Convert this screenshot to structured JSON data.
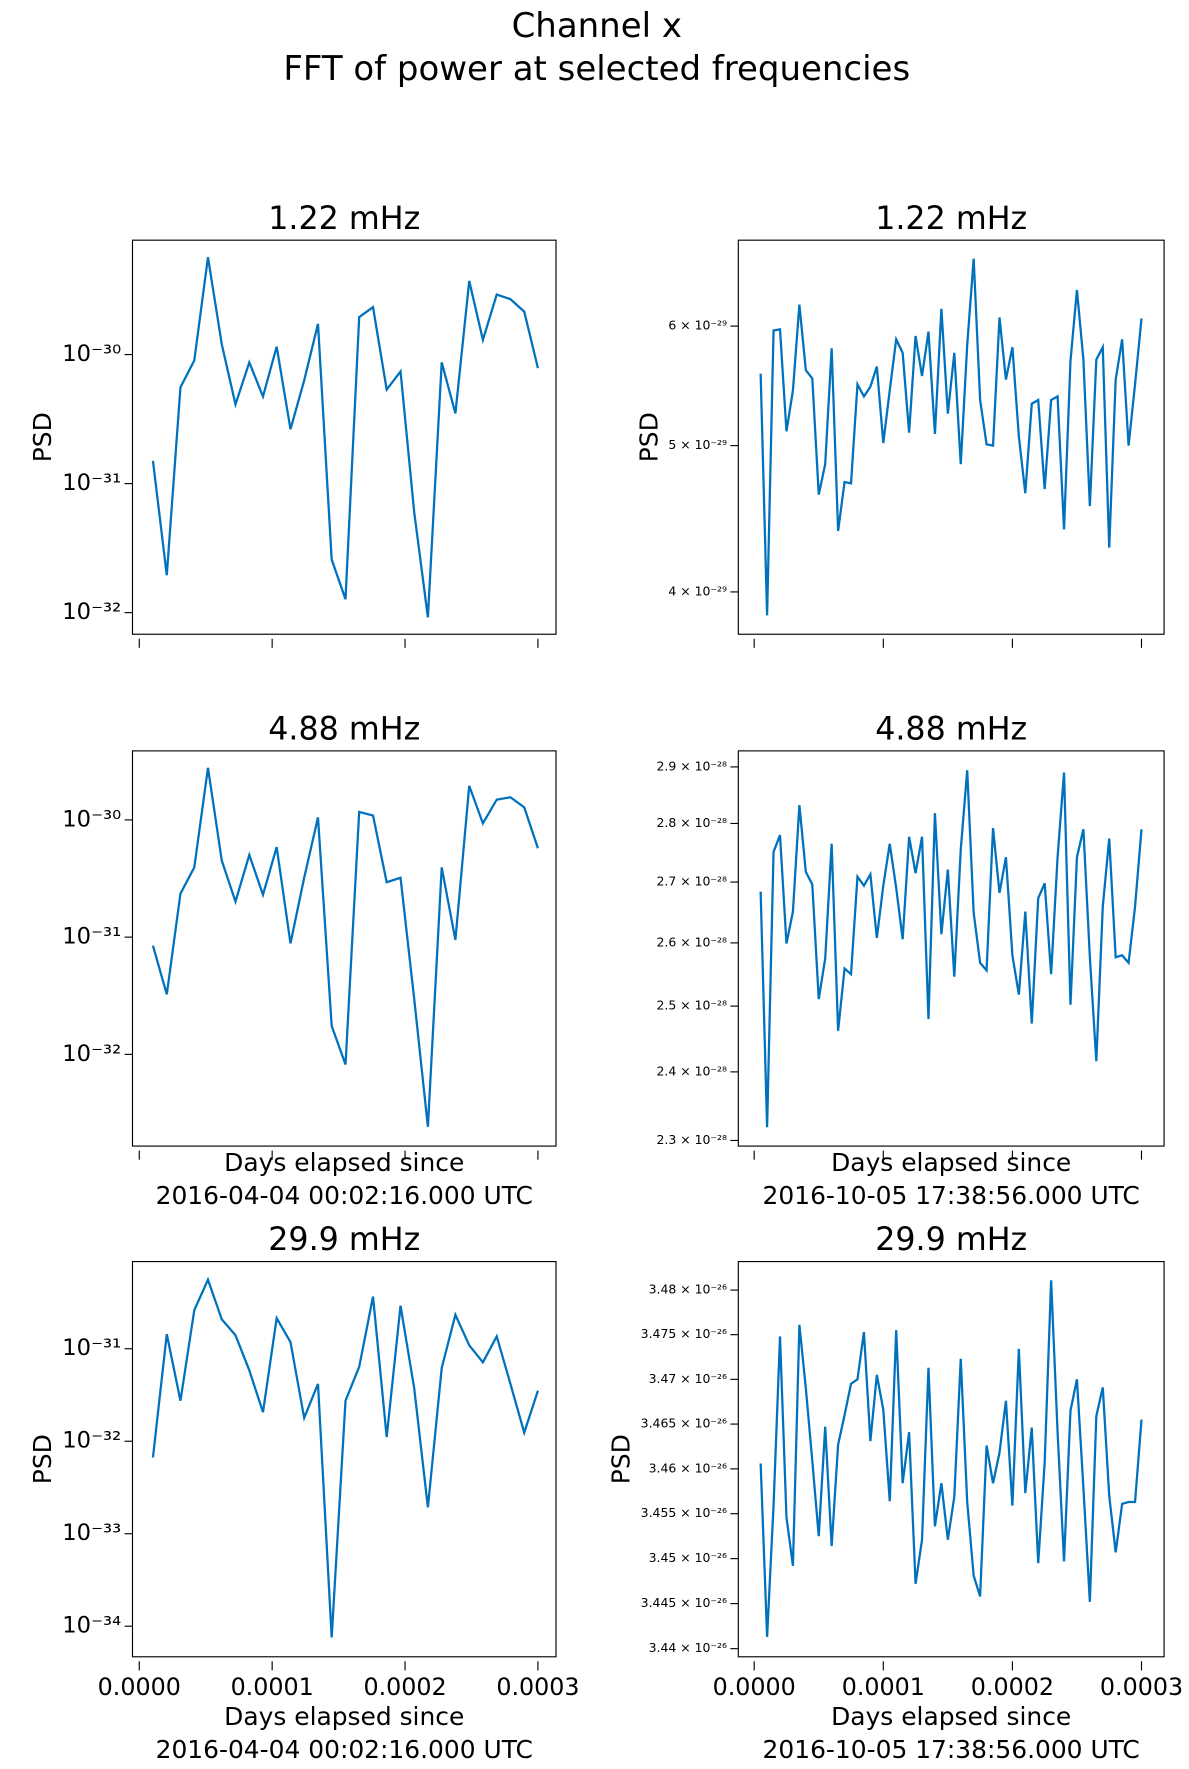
{
  "suptitle": [
    "Channel x",
    "FFT of power at selected frequencies"
  ],
  "chart_data": [
    {
      "type": "line",
      "title": "1.22 mHz",
      "ylabel": "PSD",
      "log_y": true,
      "color": "#0072bd",
      "xtick_labels": false,
      "xlim": [
        -5.1e-06,
        0.0003136
      ],
      "ylim": [
        6.8e-33,
        7.7e-30
      ],
      "xticks": [
        0,
        0.0001,
        0.0002,
        0.0003
      ],
      "yticks": [
        {
          "value": 1e-32,
          "label": "10⁻³²"
        },
        {
          "value": 1e-31,
          "label": "10⁻³¹"
        },
        {
          "value": 1e-30,
          "label": "10⁻³⁰"
        }
      ],
      "x": [
        1.03e-05,
        2.07e-05,
        3.1e-05,
        4.14e-05,
        5.17e-05,
        6.21e-05,
        7.24e-05,
        8.28e-05,
        9.31e-05,
        0.0001034,
        0.0001138,
        0.0001241,
        0.0001345,
        0.0001448,
        0.0001552,
        0.0001655,
        0.0001759,
        0.0001862,
        0.0001966,
        0.0002069,
        0.0002172,
        0.0002276,
        0.0002379,
        0.0002483,
        0.0002586,
        0.000269,
        0.0002793,
        0.0002897,
        0.0003
      ],
      "values": [
        1.5e-31,
        1.95e-32,
        5.57e-31,
        9e-31,
        5.68e-30,
        1.2e-30,
        4.11e-31,
        8.7e-31,
        4.73e-31,
        1.15e-30,
        2.64e-31,
        6.3e-31,
        1.73e-30,
        2.58e-32,
        1.27e-32,
        1.95e-30,
        2.33e-30,
        5.35e-31,
        7.4e-31,
        6e-32,
        9.2e-33,
        8.7e-31,
        3.5e-31,
        3.72e-30,
        1.3e-30,
        2.92e-30,
        2.69e-30,
        2.15e-30,
        7.85e-31
      ]
    },
    {
      "type": "line",
      "title": "1.22 mHz",
      "ylabel": "PSD",
      "log_y": true,
      "color": "#0072bd",
      "xtick_labels": false,
      "xlim": [
        -1.23e-05,
        0.0003175
      ],
      "ylim": [
        3.75e-29,
        6.84e-29
      ],
      "xticks": [
        0,
        0.0001,
        0.0002,
        0.0003
      ],
      "yticks": [
        {
          "value": 4e-29,
          "label": "4 × 10⁻²⁹"
        },
        {
          "value": 5e-29,
          "label": "5 × 10⁻²⁹"
        },
        {
          "value": 6e-29,
          "label": "6 × 10⁻²⁹"
        }
      ],
      "x": [
        5e-06,
        1e-05,
        1.5e-05,
        2e-05,
        2.5e-05,
        3e-05,
        3.5e-05,
        4e-05,
        4.5e-05,
        5e-05,
        5.5e-05,
        6e-05,
        6.5e-05,
        7e-05,
        7.5e-05,
        8e-05,
        8.5e-05,
        9e-05,
        9.5e-05,
        0.0001,
        0.000105,
        0.00011,
        0.000115,
        0.00012,
        0.000125,
        0.00013,
        0.000135,
        0.00014,
        0.000145,
        0.00015,
        0.000155,
        0.00016,
        0.000165,
        0.00017,
        0.000175,
        0.00018,
        0.000185,
        0.00019,
        0.000195,
        0.0002,
        0.000205,
        0.00021,
        0.000215,
        0.00022,
        0.000225,
        0.00023,
        0.000235,
        0.00024,
        0.000245,
        0.00025,
        0.000255,
        0.00026,
        0.000265,
        0.00027,
        0.000275,
        0.00028,
        0.000285,
        0.00029,
        0.000295,
        0.0003
      ],
      "values": [
        5.58e-29,
        3.86e-29,
        5.96e-29,
        5.97e-29,
        5.11e-29,
        5.44e-29,
        6.2e-29,
        5.61e-29,
        5.54e-29,
        4.64e-29,
        4.86e-29,
        5.8e-29,
        4.39e-29,
        4.73e-29,
        4.72e-29,
        5.49e-29,
        5.39e-29,
        5.47e-29,
        5.64e-29,
        5.02e-29,
        5.44e-29,
        5.88e-29,
        5.76e-29,
        5.1e-29,
        5.91e-29,
        5.56e-29,
        5.95e-29,
        5.09e-29,
        6.16e-29,
        5.25e-29,
        5.76e-29,
        4.86e-29,
        5.83e-29,
        6.65e-29,
        5.36e-29,
        5.01e-29,
        5e-29,
        6.08e-29,
        5.53e-29,
        5.81e-29,
        5.07e-29,
        4.65e-29,
        5.33e-29,
        5.36e-29,
        4.68e-29,
        5.36e-29,
        5.39e-29,
        4.4e-29,
        5.69e-29,
        6.34e-29,
        5.7e-29,
        4.56e-29,
        5.7e-29,
        5.81e-29,
        4.28e-29,
        5.53e-29,
        5.88e-29,
        5e-29,
        5.49e-29,
        6.07e-29
      ]
    },
    {
      "type": "line",
      "title": "4.88 mHz",
      "xlabel": [
        "Days elapsed since",
        "2016-04-04 00:02:16.000 UTC"
      ],
      "log_y": true,
      "color": "#0072bd",
      "xtick_labels": false,
      "xlim": [
        -5.1e-06,
        0.0003136
      ],
      "ylim": [
        1.65e-33,
        3.88e-30
      ],
      "xticks": [
        0,
        0.0001,
        0.0002,
        0.0003
      ],
      "yticks": [
        {
          "value": 1e-32,
          "label": "10⁻³²"
        },
        {
          "value": 1e-31,
          "label": "10⁻³¹"
        },
        {
          "value": 1e-30,
          "label": "10⁻³⁰"
        }
      ],
      "x": [
        1.03e-05,
        2.07e-05,
        3.1e-05,
        4.14e-05,
        5.17e-05,
        6.21e-05,
        7.24e-05,
        8.28e-05,
        9.31e-05,
        0.0001034,
        0.0001138,
        0.0001241,
        0.0001345,
        0.0001448,
        0.0001552,
        0.0001655,
        0.0001759,
        0.0001862,
        0.0001966,
        0.0002069,
        0.0002172,
        0.0002276,
        0.0002379,
        0.0002483,
        0.0002586,
        0.000269,
        0.0002793,
        0.0002897,
        0.0003
      ],
      "values": [
        8.46e-32,
        3.25e-32,
        2.35e-31,
        3.93e-31,
        2.78e-30,
        4.49e-31,
        2.01e-31,
        5.02e-31,
        2.3e-31,
        5.86e-31,
        8.85e-32,
        3.21e-31,
        1.05e-30,
        1.75e-32,
        8.19e-33,
        1.17e-30,
        1.09e-30,
        2.94e-31,
        3.21e-31,
        2.97e-32,
        2.41e-33,
        3.93e-31,
        9.46e-32,
        1.95e-30,
        9.35e-31,
        1.49e-30,
        1.56e-30,
        1.28e-30,
        5.73e-31
      ]
    },
    {
      "type": "line",
      "title": "4.88 mHz",
      "xlabel": [
        "Days elapsed since",
        "2016-10-05 17:38:56.000 UTC"
      ],
      "log_y": true,
      "color": "#0072bd",
      "xtick_labels": false,
      "xlim": [
        -1.23e-05,
        0.0003175
      ],
      "ylim": [
        2.292e-28,
        2.929e-28
      ],
      "xticks": [
        0,
        0.0001,
        0.0002,
        0.0003
      ],
      "yticks": [
        {
          "value": 2.3e-28,
          "label": "2.3 × 10⁻²⁸"
        },
        {
          "value": 2.4e-28,
          "label": "2.4 × 10⁻²⁸"
        },
        {
          "value": 2.5e-28,
          "label": "2.5 × 10⁻²⁸"
        },
        {
          "value": 2.6e-28,
          "label": "2.6 × 10⁻²⁸"
        },
        {
          "value": 2.7e-28,
          "label": "2.7 × 10⁻²⁸"
        },
        {
          "value": 2.8e-28,
          "label": "2.8 × 10⁻²⁸"
        },
        {
          "value": 2.9e-28,
          "label": "2.9 × 10⁻²⁸"
        }
      ],
      "x": [
        5e-06,
        1e-05,
        1.5e-05,
        2e-05,
        2.5e-05,
        3e-05,
        3.5e-05,
        4e-05,
        4.5e-05,
        5e-05,
        5.5e-05,
        6e-05,
        6.5e-05,
        7e-05,
        7.5e-05,
        8e-05,
        8.5e-05,
        9e-05,
        9.5e-05,
        0.0001,
        0.000105,
        0.00011,
        0.000115,
        0.00012,
        0.000125,
        0.00013,
        0.000135,
        0.00014,
        0.000145,
        0.00015,
        0.000155,
        0.00016,
        0.000165,
        0.00017,
        0.000175,
        0.00018,
        0.000185,
        0.00019,
        0.000195,
        0.0002,
        0.000205,
        0.00021,
        0.000215,
        0.00022,
        0.000225,
        0.00023,
        0.000235,
        0.00024,
        0.000245,
        0.00025,
        0.000255,
        0.00026,
        0.000265,
        0.00027,
        0.000275,
        0.00028,
        0.000285,
        0.00029,
        0.000295,
        0.0003
      ],
      "values": [
        2.684e-28,
        2.319e-28,
        2.751e-28,
        2.78e-28,
        2.599e-28,
        2.651e-28,
        2.832e-28,
        2.717e-28,
        2.696e-28,
        2.511e-28,
        2.575e-28,
        2.765e-28,
        2.462e-28,
        2.559e-28,
        2.55e-28,
        2.709e-28,
        2.694e-28,
        2.713e-28,
        2.608e-28,
        2.694e-28,
        2.765e-28,
        2.69e-28,
        2.606e-28,
        2.777e-28,
        2.715e-28,
        2.777e-28,
        2.48e-28,
        2.818e-28,
        2.614e-28,
        2.721e-28,
        2.546e-28,
        2.755e-28,
        2.894e-28,
        2.649e-28,
        2.568e-28,
        2.556e-28,
        2.792e-28,
        2.682e-28,
        2.742e-28,
        2.58e-28,
        2.518e-28,
        2.651e-28,
        2.473e-28,
        2.673e-28,
        2.698e-28,
        2.55e-28,
        2.742e-28,
        2.89e-28,
        2.502e-28,
        2.742e-28,
        2.79e-28,
        2.577e-28,
        2.416e-28,
        2.659e-28,
        2.774e-28,
        2.577e-28,
        2.58e-28,
        2.568e-28,
        2.659e-28,
        2.79e-28
      ]
    },
    {
      "type": "line",
      "title": "29.9 mHz",
      "ylabel": "PSD",
      "xlabel": [
        "Days elapsed since",
        "2016-04-04 00:02:16.000 UTC"
      ],
      "log_y": true,
      "color": "#0072bd",
      "xlim": [
        -5.1e-06,
        0.0003136
      ],
      "ylim": [
        4.67e-35,
        8.76e-31
      ],
      "xticks": [
        {
          "value": 0,
          "label": "0.0000"
        },
        {
          "value": 0.0001,
          "label": "0.0001"
        },
        {
          "value": 0.0002,
          "label": "0.0002"
        },
        {
          "value": 0.0003,
          "label": "0.0003"
        }
      ],
      "yticks": [
        {
          "value": 1e-34,
          "label": "10⁻³⁴"
        },
        {
          "value": 1e-33,
          "label": "10⁻³³"
        },
        {
          "value": 1e-32,
          "label": "10⁻³²"
        },
        {
          "value": 1e-31,
          "label": "10⁻³¹"
        }
      ],
      "x": [
        1.03e-05,
        2.07e-05,
        3.1e-05,
        4.14e-05,
        5.17e-05,
        6.21e-05,
        7.24e-05,
        8.28e-05,
        9.31e-05,
        0.0001034,
        0.0001138,
        0.0001241,
        0.0001345,
        0.0001448,
        0.0001552,
        0.0001655,
        0.0001759,
        0.0001862,
        0.0001966,
        0.0002069,
        0.0002172,
        0.0002276,
        0.0002379,
        0.0002483,
        0.0002586,
        0.000269,
        0.0002793,
        0.0002897,
        0.0003
      ],
      "values": [
        6.68e-33,
        1.44e-31,
        2.74e-32,
        2.61e-31,
        5.58e-31,
        2.08e-31,
        1.4e-31,
        5.85e-32,
        2.06e-32,
        2.14e-31,
        1.18e-31,
        1.79e-32,
        4.17e-32,
        7.57e-35,
        2.74e-32,
        6.37e-32,
        3.66e-31,
        1.11e-32,
        2.92e-31,
        3.73e-32,
        1.93e-33,
        6.19e-32,
        2.33e-31,
        1.09e-31,
        7.13e-32,
        1.36e-31,
        4.17e-32,
        1.24e-32,
        3.52e-32
      ]
    },
    {
      "type": "line",
      "title": "29.9 mHz",
      "ylabel": "PSD",
      "xlabel": [
        "Days elapsed since",
        "2016-10-05 17:38:56.000 UTC"
      ],
      "log_y": true,
      "color": "#0072bd",
      "xlim": [
        -1.23e-05,
        0.0003175
      ],
      "ylim": [
        3.4391e-26,
        3.4832e-26
      ],
      "xticks": [
        {
          "value": 0,
          "label": "0.0000"
        },
        {
          "value": 0.0001,
          "label": "0.0001"
        },
        {
          "value": 0.0002,
          "label": "0.0002"
        },
        {
          "value": 0.0003,
          "label": "0.0003"
        }
      ],
      "yticks": [
        {
          "value": 3.44e-26,
          "label": "3.44 × 10⁻²⁶"
        },
        {
          "value": 3.445e-26,
          "label": "3.445 × 10⁻²⁶"
        },
        {
          "value": 3.45e-26,
          "label": "3.45 × 10⁻²⁶"
        },
        {
          "value": 3.455e-26,
          "label": "3.455 × 10⁻²⁶"
        },
        {
          "value": 3.46e-26,
          "label": "3.46 × 10⁻²⁶"
        },
        {
          "value": 3.465e-26,
          "label": "3.465 × 10⁻²⁶"
        },
        {
          "value": 3.47e-26,
          "label": "3.47 × 10⁻²⁶"
        },
        {
          "value": 3.475e-26,
          "label": "3.475 × 10⁻²⁶"
        },
        {
          "value": 3.48e-26,
          "label": "3.48 × 10⁻²⁶"
        }
      ],
      "x": [
        5e-06,
        1e-05,
        1.5e-05,
        2e-05,
        2.5e-05,
        3e-05,
        3.5e-05,
        4e-05,
        4.5e-05,
        5e-05,
        5.5e-05,
        6e-05,
        6.5e-05,
        7e-05,
        7.5e-05,
        8e-05,
        8.5e-05,
        9e-05,
        9.5e-05,
        0.0001,
        0.000105,
        0.00011,
        0.000115,
        0.00012,
        0.000125,
        0.00013,
        0.000135,
        0.00014,
        0.000145,
        0.00015,
        0.000155,
        0.00016,
        0.000165,
        0.00017,
        0.000175,
        0.00018,
        0.000185,
        0.00019,
        0.000195,
        0.0002,
        0.000205,
        0.00021,
        0.000215,
        0.00022,
        0.000225,
        0.00023,
        0.000235,
        0.00024,
        0.000245,
        0.00025,
        0.000255,
        0.00026,
        0.000265,
        0.00027,
        0.000275,
        0.00028,
        0.000285,
        0.00029,
        0.000295,
        0.0003
      ],
      "values": [
        3.4606e-26,
        3.4413e-26,
        3.4559e-26,
        3.4748e-26,
        3.4546e-26,
        3.4492e-26,
        3.4761e-26,
        3.469e-26,
        3.4609e-26,
        3.4525e-26,
        3.4647e-26,
        3.4514e-26,
        3.4627e-26,
        3.466e-26,
        3.4695e-26,
        3.47e-26,
        3.4753e-26,
        3.4631e-26,
        3.4705e-26,
        3.4666e-26,
        3.4564e-26,
        3.4755e-26,
        3.4584e-26,
        3.4641e-26,
        3.4472e-26,
        3.4521e-26,
        3.4713e-26,
        3.4536e-26,
        3.4584e-26,
        3.4521e-26,
        3.4569e-26,
        3.4723e-26,
        3.4563e-26,
        3.4481e-26,
        3.4458e-26,
        3.4626e-26,
        3.4584e-26,
        3.4618e-26,
        3.4676e-26,
        3.4559e-26,
        3.4734e-26,
        3.4573e-26,
        3.4646e-26,
        3.4495e-26,
        3.4607e-26,
        3.4811e-26,
        3.4641e-26,
        3.4497e-26,
        3.4665e-26,
        3.47e-26,
        3.4579e-26,
        3.4452e-26,
        3.4659e-26,
        3.4691e-26,
        3.457e-26,
        3.4507e-26,
        3.4561e-26,
        3.4563e-26,
        3.4563e-26,
        3.4655e-26
      ]
    }
  ]
}
